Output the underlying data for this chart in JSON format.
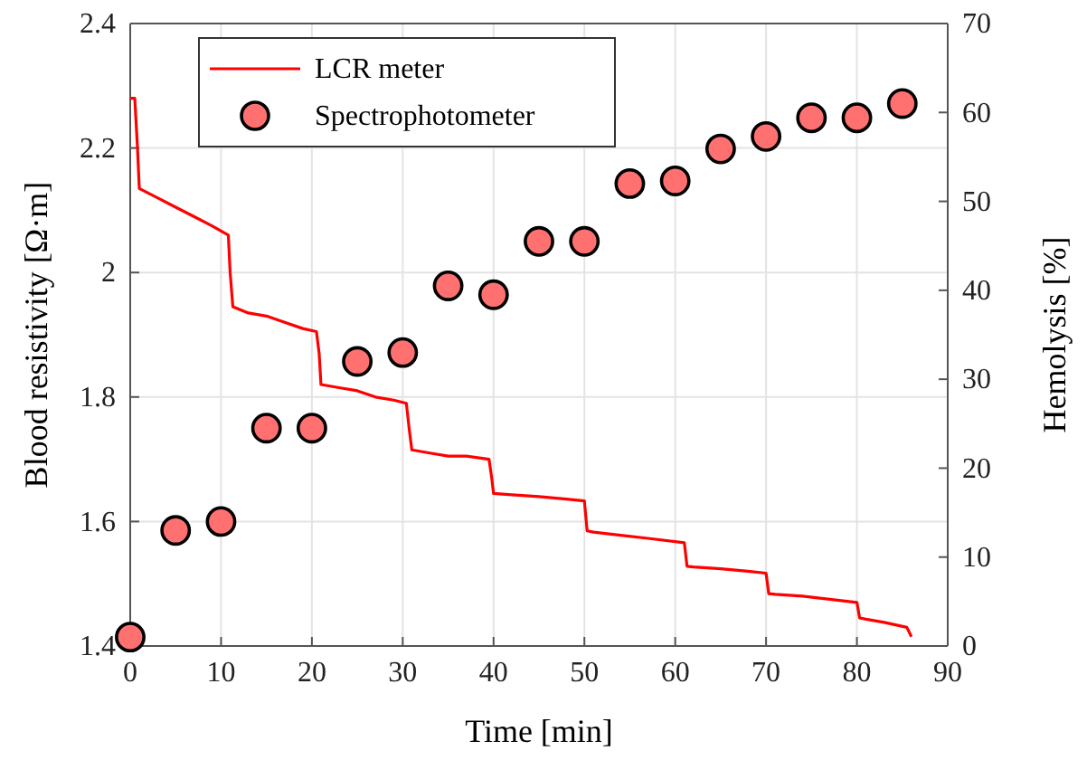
{
  "chart_data": {
    "type": "line",
    "xlabel": "Time [min]",
    "ylabel": "Blood resistivity [Ω·m]",
    "y2label": "Hemolysis [%]",
    "xlim": [
      0,
      90
    ],
    "xticks": [
      0,
      10,
      20,
      30,
      40,
      50,
      60,
      70,
      80,
      90
    ],
    "ylim": [
      1.4,
      2.4
    ],
    "yticks": [
      {
        "value": 1.4,
        "label": "1.4"
      },
      {
        "value": 1.6,
        "label": "1.6"
      },
      {
        "value": 1.8,
        "label": "1.8"
      },
      {
        "value": 2,
        "label": "2"
      },
      {
        "value": 2.2,
        "label": "2.2"
      },
      {
        "value": 2.4,
        "label": "2.4"
      }
    ],
    "y2lim": [
      0,
      70
    ],
    "y2ticks": [
      0,
      10,
      20,
      30,
      40,
      50,
      60,
      70
    ],
    "grid": true,
    "legend": "top left",
    "series": [
      {
        "name": "LCR meter",
        "color": "#ff0000",
        "marker": "none",
        "x": [
          0,
          0.5,
          0.8,
          1,
          3,
          5,
          7,
          9,
          10.8,
          11,
          11.3,
          13,
          15,
          17,
          19,
          20.5,
          20.8,
          21,
          23,
          25,
          27,
          29,
          30.4,
          30.7,
          31,
          33,
          35,
          37,
          39.5,
          39.8,
          40,
          42,
          45,
          48,
          50,
          50.3,
          51,
          54,
          57,
          61,
          61.3,
          62,
          65,
          68,
          70,
          70.3,
          71,
          74,
          77,
          80,
          80.3,
          81,
          83,
          85.5,
          86
        ],
        "values": [
          2.28,
          2.28,
          2.2,
          2.135,
          2.12,
          2.105,
          2.09,
          2.075,
          2.06,
          2.0,
          1.945,
          1.935,
          1.93,
          1.92,
          1.91,
          1.905,
          1.87,
          1.82,
          1.815,
          1.81,
          1.8,
          1.795,
          1.79,
          1.75,
          1.715,
          1.71,
          1.705,
          1.705,
          1.7,
          1.67,
          1.645,
          1.643,
          1.64,
          1.636,
          1.633,
          1.585,
          1.583,
          1.578,
          1.573,
          1.566,
          1.528,
          1.527,
          1.524,
          1.52,
          1.517,
          1.484,
          1.483,
          1.48,
          1.475,
          1.47,
          1.445,
          1.443,
          1.438,
          1.43,
          1.415
        ]
      },
      {
        "name": "Spectrophotometer",
        "type": "scatter",
        "axis": "y2",
        "color": "#ff7070",
        "marker": "circle",
        "x": [
          0,
          5,
          10,
          15,
          20,
          25,
          30,
          35,
          40,
          45,
          50,
          55,
          60,
          65,
          70,
          75,
          80,
          85
        ],
        "values": [
          1,
          13,
          14,
          24.5,
          24.5,
          32,
          33,
          40.5,
          39.5,
          45.5,
          45.5,
          52,
          52.3,
          55.9,
          57.3,
          59.4,
          59.4,
          61
        ]
      }
    ]
  }
}
